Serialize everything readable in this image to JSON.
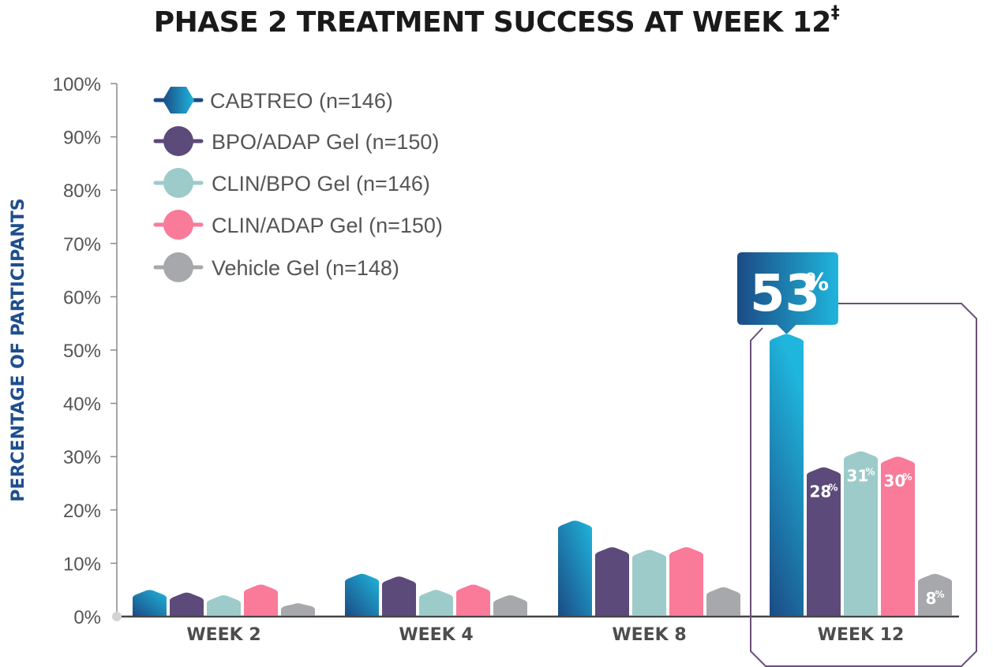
{
  "chart_data": {
    "type": "bar",
    "title": "PHASE 2 TREATMENT SUCCESS AT WEEK 12",
    "title_mark": "‡",
    "ylabel": "PERCENTAGE OF PARTICIPANTS",
    "xlabel": "",
    "ylim": [
      0,
      100
    ],
    "y_ticks": [
      {
        "value": 0,
        "label": "0%"
      },
      {
        "value": 10,
        "label": "10%"
      },
      {
        "value": 20,
        "label": "20%"
      },
      {
        "value": 30,
        "label": "30%"
      },
      {
        "value": 40,
        "label": "40%"
      },
      {
        "value": 50,
        "label": "50%"
      },
      {
        "value": 60,
        "label": "60%"
      },
      {
        "value": 70,
        "label": "70%"
      },
      {
        "value": 80,
        "label": "80%"
      },
      {
        "value": 90,
        "label": "90%"
      },
      {
        "value": 100,
        "label": "100%"
      }
    ],
    "categories": [
      "WEEK 2",
      "WEEK 4",
      "WEEK 8",
      "WEEK 12"
    ],
    "highlighted_category": "WEEK 12",
    "legend_position": "top-left",
    "grid": false,
    "series": [
      {
        "name": "CABTREO (n=146)",
        "color": "#1aa3d1",
        "color_dark": "#1b4b85",
        "values": [
          5,
          8,
          18,
          53
        ]
      },
      {
        "name": "BPO/ADAP Gel (n=150)",
        "color": "#5c4a7a",
        "values": [
          4.5,
          7.5,
          13,
          28
        ]
      },
      {
        "name": "CLIN/BPO Gel (n=146)",
        "color": "#9ccbca",
        "values": [
          4,
          5,
          12.5,
          31
        ]
      },
      {
        "name": "CLIN/ADAP Gel (n=150)",
        "color": "#f97a99",
        "values": [
          6,
          6,
          13,
          30
        ]
      },
      {
        "name": "Vehicle Gel (n=148)",
        "color": "#a7a8ab",
        "values": [
          2.5,
          4,
          5.5,
          8
        ]
      }
    ],
    "data_labels": [
      {
        "category": "WEEK 12",
        "series": 0,
        "number": "53",
        "unit": "%",
        "style": "callout"
      },
      {
        "category": "WEEK 12",
        "series": 1,
        "number": "28",
        "unit": "%"
      },
      {
        "category": "WEEK 12",
        "series": 2,
        "number": "31",
        "unit": "%"
      },
      {
        "category": "WEEK 12",
        "series": 3,
        "number": "30",
        "unit": "%"
      },
      {
        "category": "WEEK 12",
        "series": 4,
        "number": "8",
        "unit": "%"
      }
    ]
  }
}
